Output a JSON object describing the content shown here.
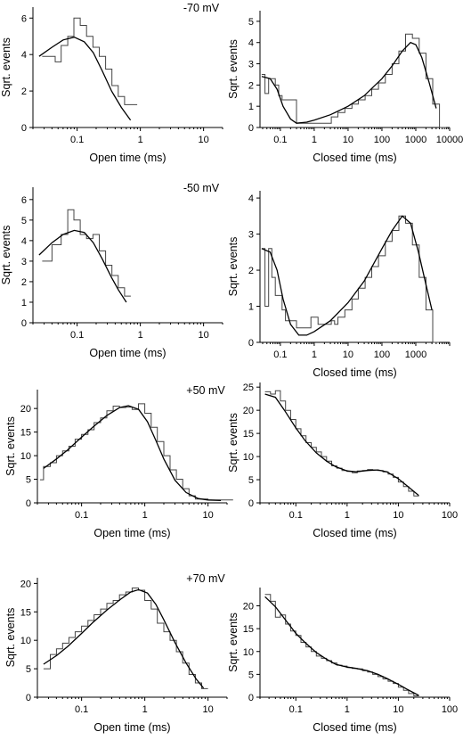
{
  "chart_data": [
    {
      "id": "open-m70",
      "type": "line",
      "voltage": "-70 mV",
      "xlabel": "Open time (ms)",
      "ylabel": "Sqrt. events",
      "xscale": "log",
      "xlim": [
        0.02,
        20
      ],
      "ylim": [
        0,
        6.6
      ],
      "xticks": [
        {
          "v": 0.1,
          "label": "0.1"
        },
        {
          "v": 1,
          "label": "1"
        },
        {
          "v": 10,
          "label": "10"
        }
      ],
      "yticks": [
        0,
        2,
        4,
        6
      ],
      "series": [
        {
          "kind": "histogram",
          "x": [
            0.028,
            0.035,
            0.045,
            0.056,
            0.071,
            0.089,
            0.112,
            0.141,
            0.178,
            0.224,
            0.282,
            0.355,
            0.447,
            0.562,
            0.708
          ],
          "y": [
            3.9,
            3.9,
            3.6,
            4.5,
            5.0,
            6.0,
            5.6,
            5.0,
            4.4,
            3.9,
            3.2,
            2.3,
            1.7,
            1.25,
            1.25
          ]
        },
        {
          "kind": "fit",
          "x": [
            0.025,
            0.04,
            0.06,
            0.09,
            0.13,
            0.18,
            0.25,
            0.35,
            0.5,
            0.7
          ],
          "y": [
            3.9,
            4.4,
            4.8,
            4.95,
            4.7,
            4.1,
            3.1,
            2.0,
            1.1,
            0.4
          ]
        }
      ]
    },
    {
      "id": "closed-m70",
      "type": "line",
      "xlabel": "Closed time (ms)",
      "ylabel": "Sqrt. events",
      "xscale": "log",
      "xlim": [
        0.025,
        10000
      ],
      "ylim": [
        0,
        5.5
      ],
      "xticks": [
        {
          "v": 0.1,
          "label": "0.1"
        },
        {
          "v": 1,
          "label": "1"
        },
        {
          "v": 10,
          "label": "10"
        },
        {
          "v": 100,
          "label": "100"
        },
        {
          "v": 1000,
          "label": "1000"
        },
        {
          "v": 10000,
          "label": "10000"
        }
      ],
      "yticks": [
        0,
        1,
        2,
        3,
        4,
        5
      ],
      "series": [
        {
          "kind": "histogram",
          "x": [
            0.028,
            0.035,
            0.045,
            0.056,
            0.071,
            0.089,
            0.112,
            0.3,
            3.2,
            5,
            8,
            13,
            20,
            32,
            50,
            79,
            126,
            200,
            316,
            500,
            794,
            1260,
            2000,
            3160,
            5000
          ],
          "y": [
            2.5,
            1.6,
            2.3,
            2.3,
            2.0,
            1.5,
            1.3,
            0.2,
            0.5,
            0.7,
            0.9,
            1.1,
            1.3,
            1.5,
            1.8,
            2.1,
            2.5,
            3.0,
            3.6,
            4.4,
            4.2,
            3.5,
            2.3,
            1.1,
            0
          ]
        },
        {
          "kind": "fit",
          "x": [
            0.028,
            0.05,
            0.08,
            0.12,
            0.2,
            0.3,
            0.6,
            1,
            3,
            10,
            30,
            100,
            200,
            400,
            700,
            1000,
            1500,
            2500,
            4000
          ],
          "y": [
            2.4,
            2.3,
            1.8,
            1.0,
            0.4,
            0.2,
            0.25,
            0.35,
            0.6,
            1.0,
            1.5,
            2.3,
            2.9,
            3.6,
            4.0,
            3.9,
            3.3,
            2.1,
            0.9
          ]
        }
      ]
    },
    {
      "id": "open-m50",
      "type": "line",
      "voltage": "-50 mV",
      "xlabel": "Open time (ms)",
      "ylabel": "Sqrt. events",
      "xscale": "log",
      "xlim": [
        0.02,
        20
      ],
      "ylim": [
        0,
        6.6
      ],
      "xticks": [
        {
          "v": 0.1,
          "label": "0.1"
        },
        {
          "v": 1,
          "label": "1"
        },
        {
          "v": 10,
          "label": "10"
        }
      ],
      "yticks": [
        0,
        1,
        2,
        3,
        4,
        5,
        6
      ],
      "series": [
        {
          "kind": "histogram",
          "x": [
            0.028,
            0.04,
            0.056,
            0.071,
            0.089,
            0.112,
            0.141,
            0.178,
            0.224,
            0.282,
            0.355,
            0.447,
            0.562
          ],
          "y": [
            3.0,
            3.8,
            4.3,
            5.5,
            5.0,
            4.3,
            4.1,
            4.3,
            3.5,
            2.8,
            2.3,
            1.7,
            1.3
          ]
        },
        {
          "kind": "fit",
          "x": [
            0.025,
            0.04,
            0.06,
            0.09,
            0.13,
            0.18,
            0.25,
            0.35,
            0.45,
            0.6
          ],
          "y": [
            3.3,
            3.9,
            4.3,
            4.5,
            4.4,
            3.9,
            3.1,
            2.2,
            1.6,
            1.0
          ]
        }
      ]
    },
    {
      "id": "closed-m50",
      "type": "line",
      "xlabel": "Closed time (ms)",
      "ylabel": "Sqrt. events",
      "xscale": "log",
      "xlim": [
        0.025,
        10000
      ],
      "ylim": [
        0,
        4.2
      ],
      "xticks": [
        {
          "v": 0.1,
          "label": "0.1"
        },
        {
          "v": 1,
          "label": "1"
        },
        {
          "v": 10,
          "label": "10"
        },
        {
          "v": 100,
          "label": "100"
        },
        {
          "v": 1000,
          "label": "1000"
        }
      ],
      "yticks": [
        0,
        1,
        2,
        3,
        4
      ],
      "series": [
        {
          "kind": "histogram",
          "x": [
            0.028,
            0.035,
            0.045,
            0.056,
            0.071,
            0.089,
            0.112,
            0.141,
            0.3,
            0.8,
            1.3,
            3.2,
            4.0,
            5,
            8,
            13,
            20,
            32,
            50,
            79,
            126,
            200,
            316,
            500,
            794,
            1260,
            2000,
            3160
          ],
          "y": [
            2.6,
            1.0,
            2.6,
            1.8,
            1.3,
            1.3,
            0.9,
            0.6,
            0.4,
            0.7,
            0.5,
            0.6,
            0.5,
            0.7,
            0.9,
            1.2,
            1.5,
            1.8,
            2.1,
            2.4,
            2.8,
            3.1,
            3.5,
            3.3,
            2.7,
            1.8,
            0.9,
            0
          ]
        },
        {
          "kind": "fit",
          "x": [
            0.028,
            0.05,
            0.08,
            0.12,
            0.2,
            0.35,
            0.6,
            1,
            3,
            10,
            30,
            100,
            200,
            400,
            700,
            1200,
            2000,
            3000
          ],
          "y": [
            2.6,
            2.5,
            2.0,
            1.2,
            0.5,
            0.2,
            0.2,
            0.3,
            0.6,
            1.1,
            1.7,
            2.6,
            3.1,
            3.5,
            3.3,
            2.5,
            1.6,
            0.9
          ]
        }
      ]
    },
    {
      "id": "open-p50",
      "type": "line",
      "voltage": "+50 mV",
      "xlabel": "Open time (ms)",
      "ylabel": "Sqrt. events",
      "xscale": "log",
      "xlim": [
        0.02,
        20
      ],
      "ylim": [
        0,
        24
      ],
      "xticks": [
        {
          "v": 0.1,
          "label": "0.1"
        },
        {
          "v": 1,
          "label": "1"
        },
        {
          "v": 10,
          "label": "10"
        }
      ],
      "yticks": [
        0,
        5,
        10,
        15,
        20
      ],
      "series": [
        {
          "kind": "histogram",
          "x": [
            0.022,
            0.025,
            0.032,
            0.04,
            0.05,
            0.063,
            0.079,
            0.1,
            0.126,
            0.158,
            0.2,
            0.251,
            0.316,
            0.398,
            0.5,
            0.631,
            0.794,
            1.0,
            1.26,
            1.58,
            2.0,
            2.51,
            3.16,
            3.98,
            5.01,
            6.31,
            10,
            15.8
          ],
          "y": [
            4.9,
            7.7,
            8.5,
            10.0,
            11.0,
            12.0,
            13.5,
            14.5,
            15.5,
            17.0,
            18.0,
            19.5,
            20.5,
            20.2,
            20.3,
            19.8,
            21.0,
            19.0,
            16.0,
            13.0,
            10.0,
            7.0,
            5.0,
            3.0,
            1.5,
            0.8,
            0.6,
            0.6
          ]
        },
        {
          "kind": "fit",
          "x": [
            0.025,
            0.04,
            0.06,
            0.1,
            0.15,
            0.25,
            0.4,
            0.55,
            0.8,
            1.1,
            1.5,
            2,
            3,
            4.5,
            7,
            10,
            16
          ],
          "y": [
            7.3,
            9.3,
            11.2,
            13.9,
            16.0,
            18.5,
            20.2,
            20.6,
            19.8,
            17.2,
            13.2,
            9.3,
            4.8,
            2.2,
            0.9,
            0.6,
            0.5
          ]
        }
      ]
    },
    {
      "id": "closed-p50",
      "type": "line",
      "xlabel": "Closed time (ms)",
      "ylabel": "Sqrt. events",
      "xscale": "log",
      "xlim": [
        0.02,
        100
      ],
      "ylim": [
        0,
        26
      ],
      "xticks": [
        {
          "v": 0.1,
          "label": "0.1"
        },
        {
          "v": 1,
          "label": "1"
        },
        {
          "v": 10,
          "label": "10"
        },
        {
          "v": 100,
          "label": "100"
        }
      ],
      "yticks": [
        0,
        5,
        10,
        15,
        20,
        25
      ],
      "series": [
        {
          "kind": "histogram",
          "x": [
            0.025,
            0.032,
            0.04,
            0.05,
            0.063,
            0.079,
            0.1,
            0.126,
            0.158,
            0.2,
            0.251,
            0.316,
            0.398,
            0.5,
            0.631,
            0.794,
            1.0,
            1.26,
            1.58,
            2.0,
            2.51,
            3.16,
            3.98,
            5.01,
            6.31,
            7.94,
            10,
            12.6,
            15.8,
            20
          ],
          "y": [
            24.0,
            23.5,
            24.2,
            22.0,
            20.0,
            18.0,
            16.0,
            14.5,
            13.0,
            12.0,
            11.0,
            10.0,
            9.0,
            8.0,
            7.5,
            7.0,
            6.8,
            6.5,
            6.9,
            7.0,
            7.2,
            7.1,
            7.0,
            6.7,
            6.2,
            5.5,
            4.5,
            3.5,
            2.5,
            1.5
          ]
        },
        {
          "kind": "fit",
          "x": [
            0.025,
            0.04,
            0.06,
            0.1,
            0.15,
            0.25,
            0.4,
            0.6,
            1,
            1.5,
            2.5,
            4,
            6,
            10,
            15,
            25
          ],
          "y": [
            23.5,
            22.8,
            20.0,
            16.2,
            13.5,
            10.8,
            9.0,
            7.8,
            6.9,
            6.7,
            7.0,
            7.1,
            6.7,
            5.2,
            3.6,
            1.6
          ]
        }
      ]
    },
    {
      "id": "open-p70",
      "type": "line",
      "voltage": "+70 mV",
      "xlabel": "Open time (ms)",
      "ylabel": "Sqrt. events",
      "xscale": "log",
      "xlim": [
        0.02,
        20
      ],
      "ylim": [
        0,
        21
      ],
      "xticks": [
        {
          "v": 0.1,
          "label": "0.1"
        },
        {
          "v": 1,
          "label": "1"
        },
        {
          "v": 10,
          "label": "10"
        }
      ],
      "yticks": [
        0,
        5,
        10,
        15,
        20
      ],
      "series": [
        {
          "kind": "histogram",
          "x": [
            0.025,
            0.032,
            0.04,
            0.05,
            0.063,
            0.079,
            0.1,
            0.126,
            0.158,
            0.2,
            0.251,
            0.316,
            0.398,
            0.5,
            0.631,
            0.794,
            1.0,
            1.26,
            1.58,
            2.0,
            2.51,
            3.16,
            3.98,
            5.01,
            6.31,
            7.94
          ],
          "y": [
            5.0,
            7.5,
            8.5,
            9.5,
            10.5,
            11.5,
            12.5,
            13.5,
            14.5,
            15.5,
            16.5,
            17.0,
            18.0,
            18.5,
            19.2,
            18.8,
            17.0,
            15.5,
            13.0,
            11.5,
            10.0,
            8.0,
            6.0,
            4.0,
            2.5,
            1.5
          ]
        },
        {
          "kind": "fit",
          "x": [
            0.025,
            0.04,
            0.06,
            0.1,
            0.15,
            0.25,
            0.4,
            0.6,
            0.8,
            1.1,
            1.5,
            2,
            3,
            4.5,
            6.5,
            8.5
          ],
          "y": [
            5.8,
            7.3,
            8.9,
            11.2,
            13.1,
            15.3,
            17.1,
            18.5,
            18.9,
            18.3,
            16.3,
            13.6,
            9.6,
            6.0,
            3.2,
            1.6
          ]
        }
      ]
    },
    {
      "id": "closed-p70",
      "type": "line",
      "xlabel": "Closed time (ms)",
      "ylabel": "Sqrt. events",
      "xscale": "log",
      "xlim": [
        0.02,
        100
      ],
      "ylim": [
        0,
        24
      ],
      "xticks": [
        {
          "v": 0.1,
          "label": "0.1"
        },
        {
          "v": 1,
          "label": "1"
        },
        {
          "v": 10,
          "label": "10"
        },
        {
          "v": 100,
          "label": "100"
        }
      ],
      "yticks": [
        0,
        5,
        10,
        15,
        20
      ],
      "series": [
        {
          "kind": "histogram",
          "x": [
            0.025,
            0.032,
            0.04,
            0.05,
            0.063,
            0.079,
            0.1,
            0.126,
            0.158,
            0.2,
            0.251,
            0.316,
            0.398,
            0.5,
            0.631,
            0.794,
            1.0,
            1.26,
            1.58,
            2.0,
            2.51,
            3.16,
            3.98,
            5.01,
            6.31,
            7.94,
            10,
            12.6,
            15.8,
            20
          ],
          "y": [
            22.5,
            21.0,
            17.5,
            18.0,
            16.0,
            14.5,
            13.5,
            12.0,
            11.0,
            10.0,
            9.0,
            8.5,
            8.0,
            7.5,
            7.0,
            6.8,
            6.5,
            6.3,
            6.2,
            5.8,
            5.5,
            5.0,
            4.5,
            4.0,
            3.5,
            3.0,
            2.2,
            1.5,
            0.8,
            0.3
          ]
        },
        {
          "kind": "fit",
          "x": [
            0.025,
            0.04,
            0.06,
            0.1,
            0.15,
            0.25,
            0.4,
            0.6,
            1,
            1.5,
            2.5,
            4,
            6,
            10,
            15,
            25
          ],
          "y": [
            22.0,
            19.8,
            17.2,
            14.0,
            12.0,
            9.8,
            8.3,
            7.2,
            6.6,
            6.3,
            5.8,
            5.0,
            4.1,
            2.8,
            1.7,
            0.4
          ]
        }
      ]
    }
  ]
}
